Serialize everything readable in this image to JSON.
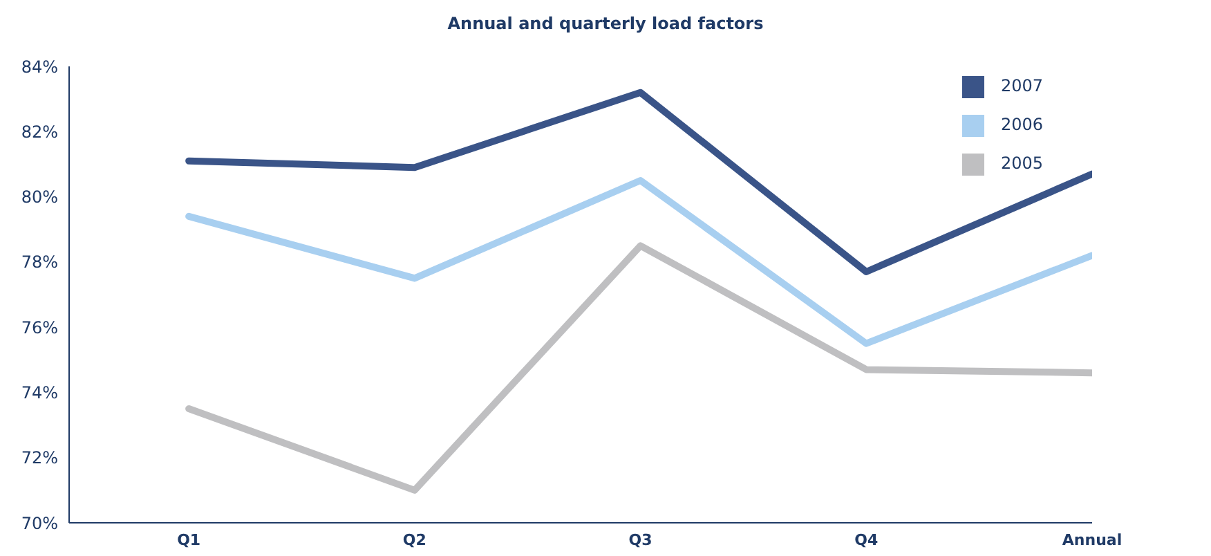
{
  "chart_data": {
    "type": "line",
    "title": "Annual and quarterly load factors",
    "categories": [
      "Q1",
      "Q2",
      "Q3",
      "Q4",
      "Annual"
    ],
    "series": [
      {
        "name": "2007",
        "color": "#3a5488",
        "values": [
          81.1,
          80.9,
          83.2,
          77.7,
          80.7
        ]
      },
      {
        "name": "2006",
        "color": "#a8cff0",
        "values": [
          79.4,
          77.5,
          80.5,
          75.5,
          78.2
        ]
      },
      {
        "name": "2005",
        "color": "#bfbfc1",
        "values": [
          73.5,
          71.0,
          78.5,
          74.7,
          74.6
        ]
      }
    ],
    "ylim": [
      70,
      84
    ],
    "yticks": [
      {
        "value": 70,
        "label": "70%"
      },
      {
        "value": 72,
        "label": "72%"
      },
      {
        "value": 74,
        "label": "74%"
      },
      {
        "value": 76,
        "label": "76%"
      },
      {
        "value": 78,
        "label": "78%"
      },
      {
        "value": 80,
        "label": "80%"
      },
      {
        "value": 82,
        "label": "82%"
      },
      {
        "value": 84,
        "label": "84%"
      }
    ],
    "legend": "top right",
    "grid": false,
    "marker": "none",
    "line_style": "solid"
  }
}
